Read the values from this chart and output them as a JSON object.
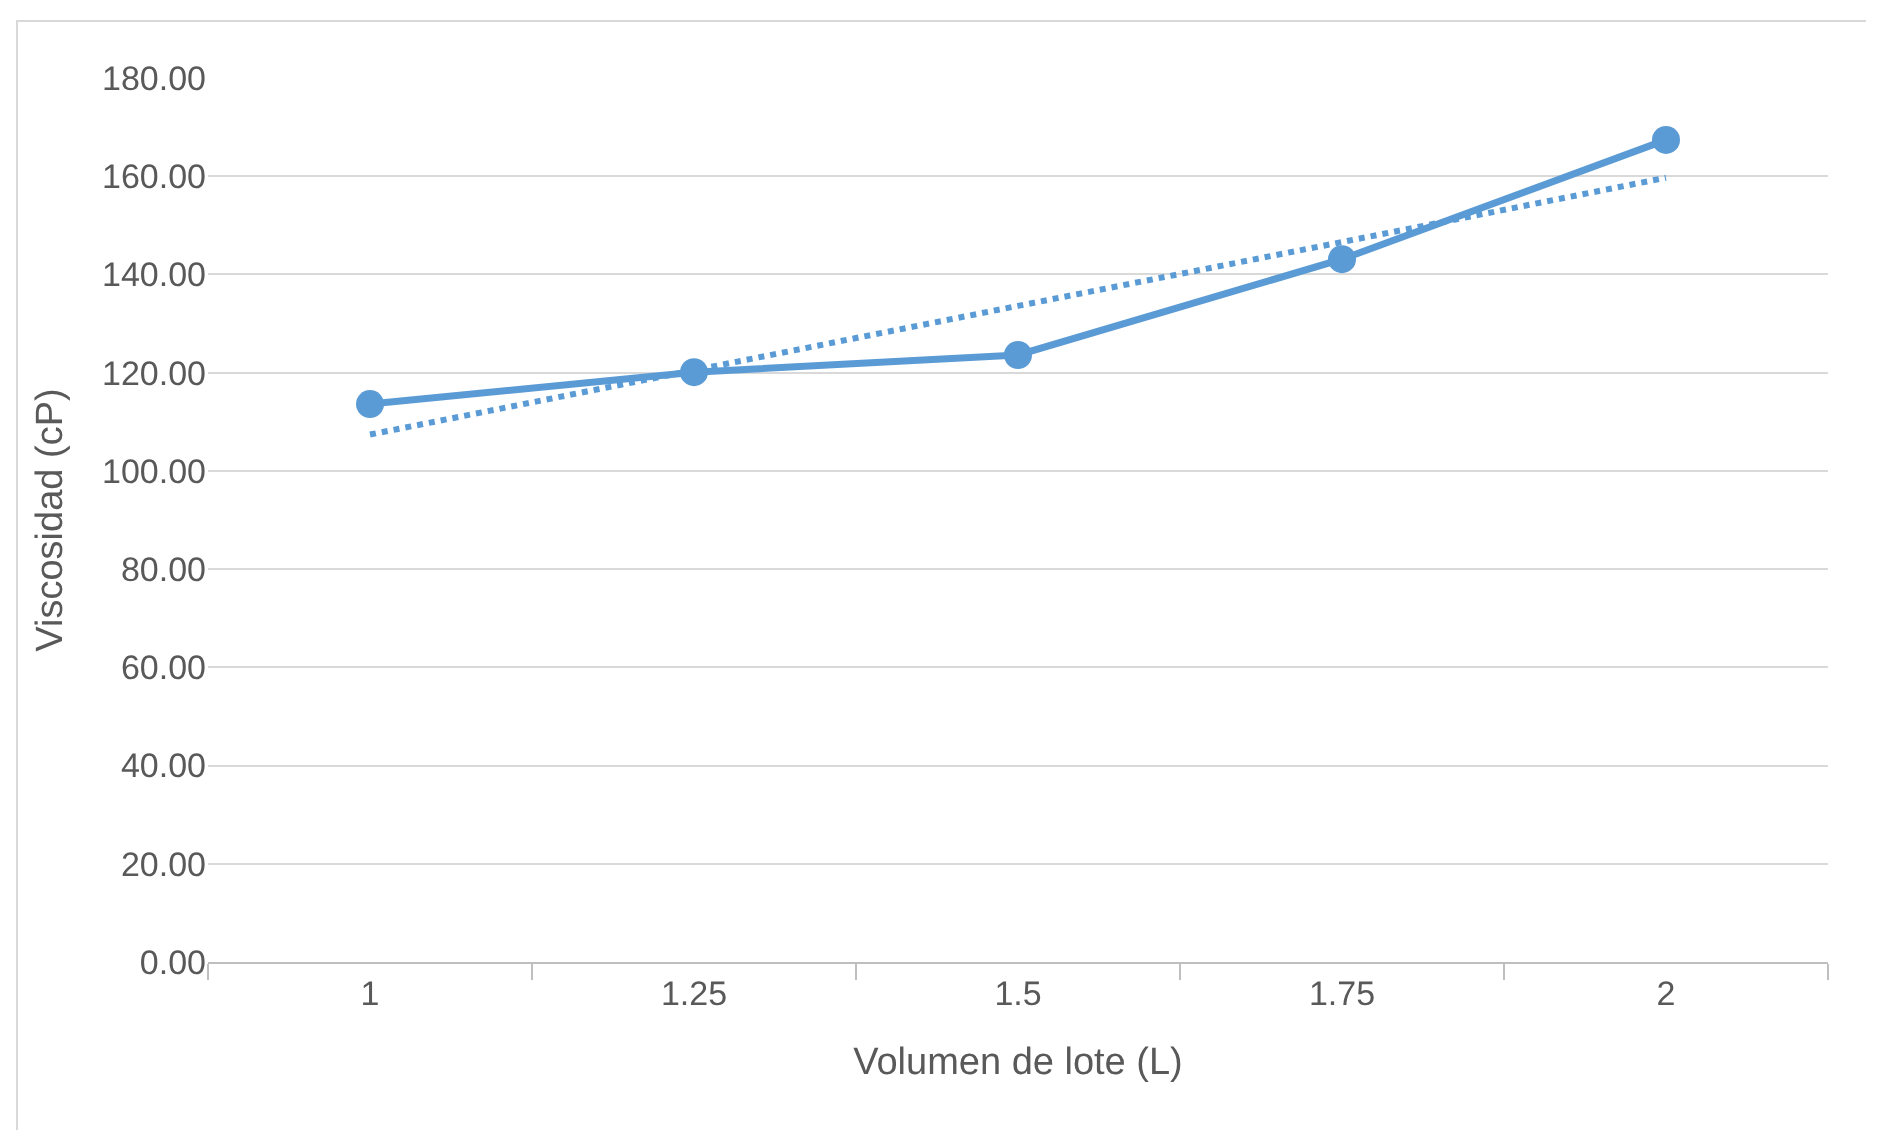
{
  "chart_data": {
    "type": "line",
    "xlabel": "Volumen de lote (L)",
    "ylabel": "Viscosidad (cP)",
    "categories": [
      "1",
      "1.25",
      "1.5",
      "1.75",
      "2"
    ],
    "series": [
      {
        "color": "#5b9bd5",
        "values": [
          113.6,
          120.1,
          123.6,
          143.1,
          167.4
        ],
        "marker": "circle",
        "line_style": "solid"
      },
      {
        "type": "line",
        "color": "#5b9bd5",
        "values": [
          107.4,
          120.5,
          133.6,
          146.6,
          159.7
        ],
        "marker": "none",
        "line_style": "dotted"
      }
    ],
    "ylim": [
      0,
      180
    ],
    "yticks": [
      {
        "value": 0,
        "label": "0.00"
      },
      {
        "value": 20,
        "label": "20.00"
      },
      {
        "value": 40,
        "label": "40.00"
      },
      {
        "value": 60,
        "label": "60.00"
      },
      {
        "value": 80,
        "label": "80.00"
      },
      {
        "value": 100,
        "label": "100.00"
      },
      {
        "value": 120,
        "label": "120.00"
      },
      {
        "value": 140,
        "label": "140.00"
      },
      {
        "value": 160,
        "label": "160.00"
      },
      {
        "value": 180,
        "label": "180.00"
      }
    ],
    "grid": "y"
  }
}
